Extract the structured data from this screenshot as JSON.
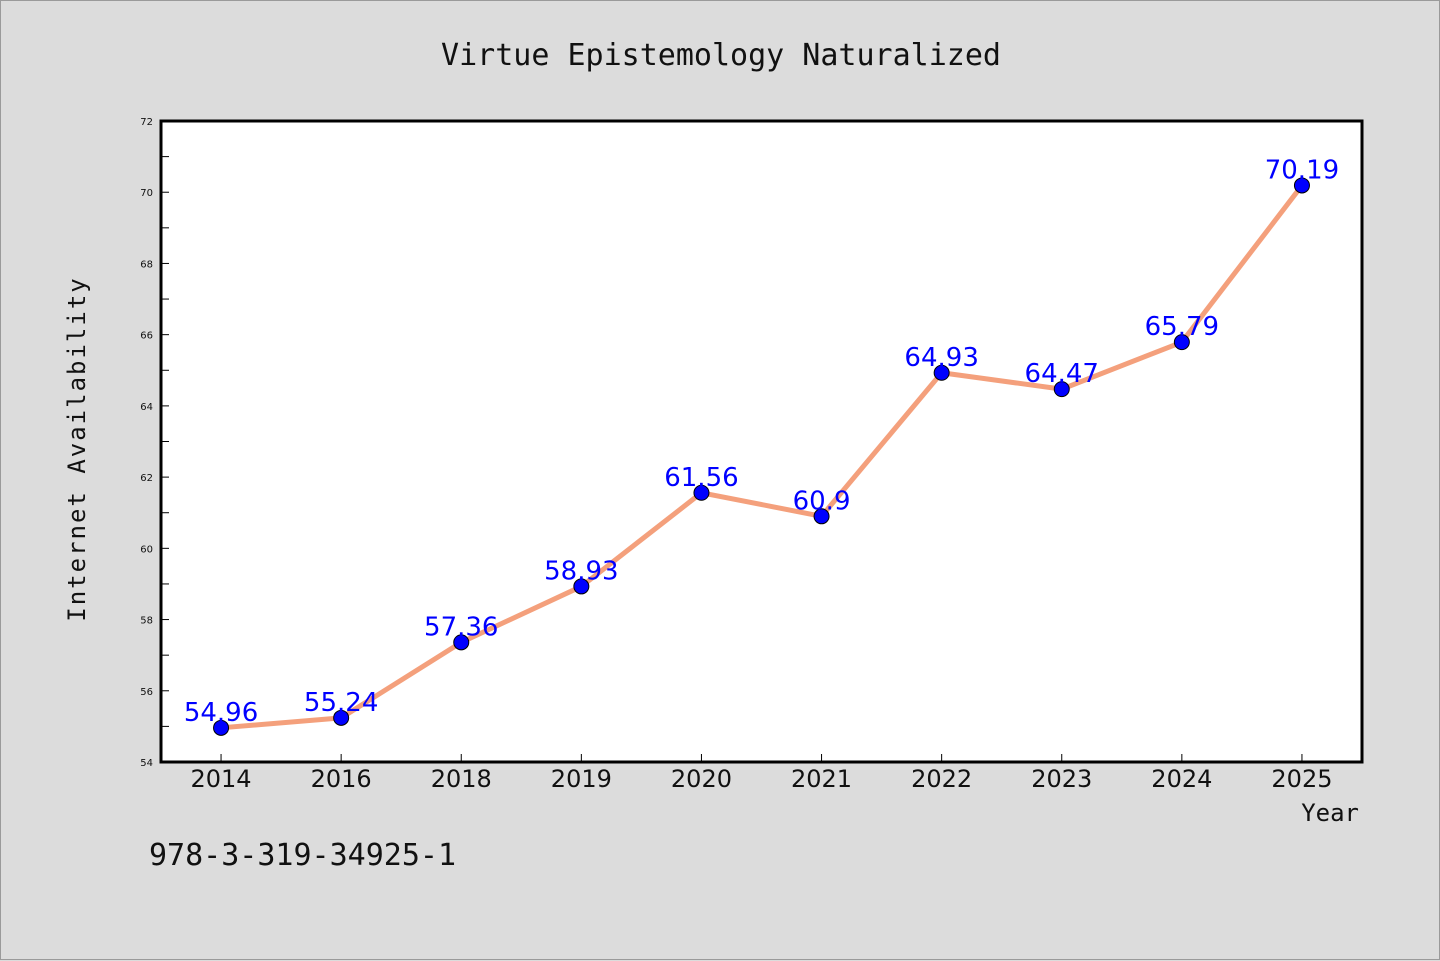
{
  "chart_data": {
    "type": "line",
    "title": "Virtue Epistemology Naturalized",
    "xlabel": "Year",
    "ylabel": "Internet Availability",
    "categories": [
      "2014",
      "2016",
      "2018",
      "2019",
      "2020",
      "2021",
      "2022",
      "2023",
      "2024",
      "2025"
    ],
    "series": [
      {
        "values": [
          54.96,
          55.24,
          57.36,
          58.93,
          61.56,
          60.9,
          64.93,
          64.47,
          65.79,
          70.19
        ]
      }
    ],
    "ylim": [
      54,
      72
    ],
    "yticks": [
      54,
      56,
      58,
      60,
      62,
      64,
      66,
      68,
      70,
      72
    ],
    "grid": false,
    "legend": "none",
    "data_labels": [
      "54.96",
      "55.24",
      "57.36",
      "58.93",
      "61.56",
      "60.9",
      "64.93",
      "64.47",
      "65.79",
      "70.19"
    ],
    "line_color": "#f4a07c",
    "marker_color": "#0000ff",
    "label_color": "#0000ff"
  },
  "footnote": "978-3-319-34925-1"
}
